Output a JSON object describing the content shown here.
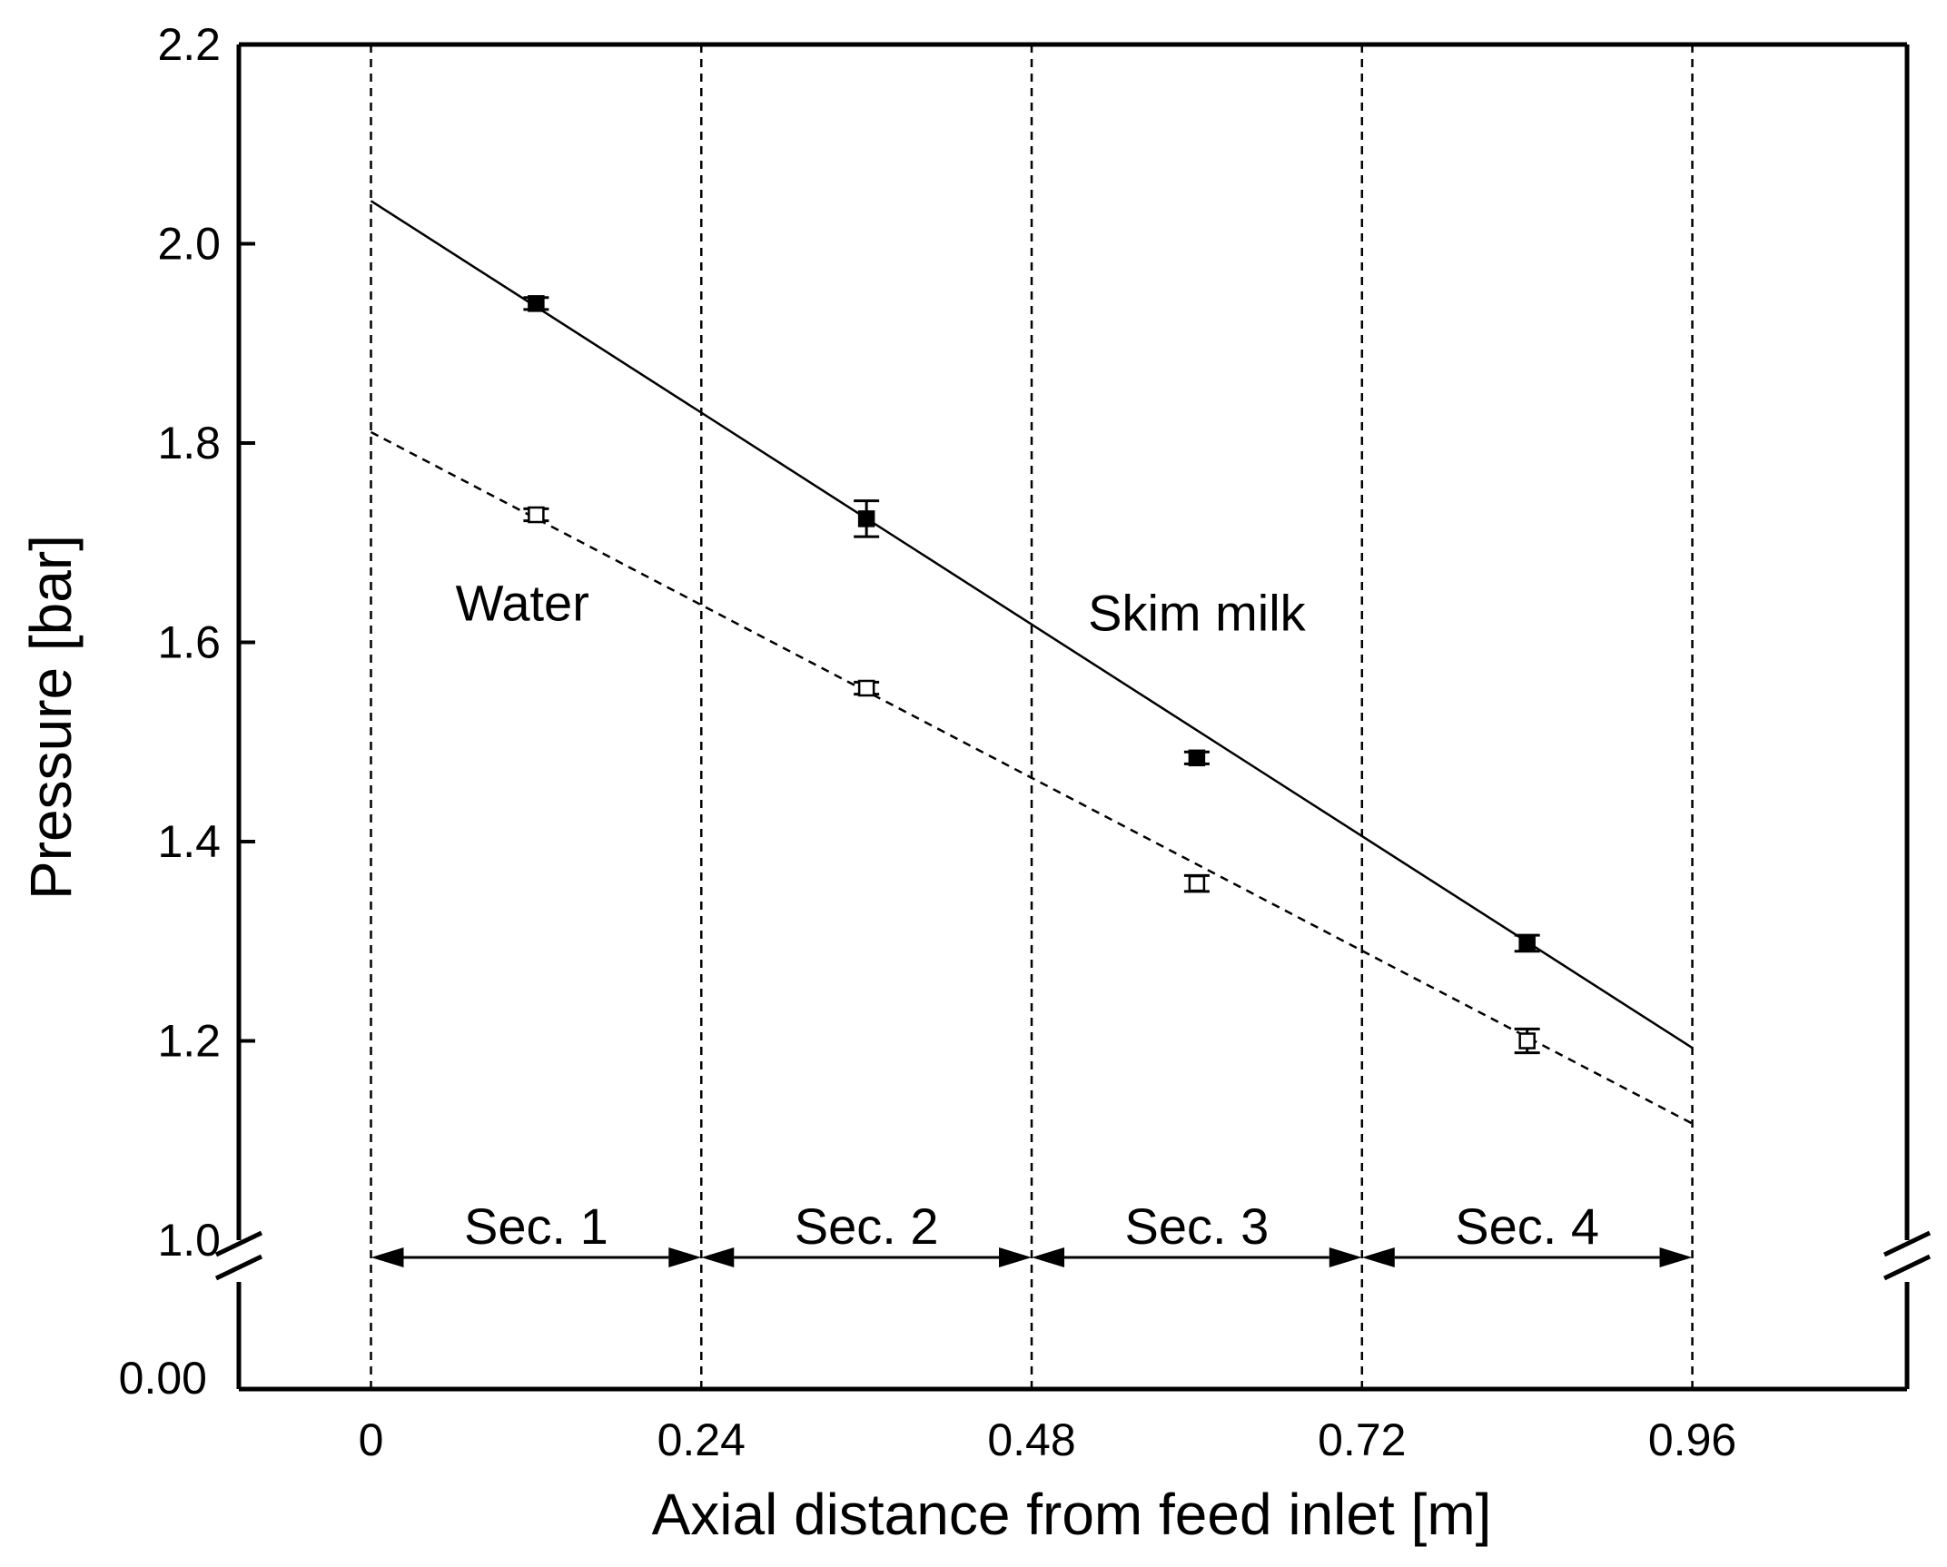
{
  "chart_data": {
    "type": "line",
    "xlabel": "Axial distance from feed inlet [m]",
    "ylabel": "Pressure [bar]",
    "xlim": [
      -0.096,
      1.116
    ],
    "ylim_upper": [
      1.0,
      2.2
    ],
    "ylim_lower": [
      0.0,
      1.0
    ],
    "x_ticks": [
      "0",
      "0.24",
      "0.48",
      "0.72",
      "0.96"
    ],
    "x_tick_values": [
      0,
      0.24,
      0.48,
      0.72,
      0.96
    ],
    "y_ticks_upper": [
      "1.0",
      "1.2",
      "1.4",
      "1.6",
      "1.8",
      "2.0",
      "2.2"
    ],
    "y_tick_values_upper": [
      1.0,
      1.2,
      1.4,
      1.6,
      1.8,
      2.0,
      2.2
    ],
    "y_ticks_lower": [
      "0.00"
    ],
    "y_tick_values_lower": [
      0.0
    ],
    "series": [
      {
        "name": "Skim milk",
        "marker": "filled-square",
        "line_style": "solid",
        "x": [
          0.12,
          0.36,
          0.6,
          0.84
        ],
        "y": [
          1.94,
          1.724,
          1.484,
          1.298
        ],
        "error": [
          0.006,
          0.018,
          0.006,
          0.008
        ],
        "fit": {
          "x": [
            0.0,
            0.96
          ],
          "y": [
            2.043,
            1.193
          ]
        }
      },
      {
        "name": "Water",
        "marker": "open-square",
        "line_style": "dashed",
        "x": [
          0.12,
          0.36,
          0.6,
          0.84
        ],
        "y": [
          1.728,
          1.554,
          1.358,
          1.2
        ],
        "error": [
          0.006,
          0.006,
          0.008,
          0.012
        ],
        "fit": {
          "x": [
            0.0,
            0.96
          ],
          "y": [
            1.811,
            1.117
          ]
        }
      }
    ],
    "annotations": [
      {
        "text": "Water",
        "x": 0.11,
        "y": 1.64
      },
      {
        "text": "Skim milk",
        "x": 0.6,
        "y": 1.63
      }
    ],
    "section_boundaries": [
      0,
      0.24,
      0.48,
      0.72,
      0.96
    ],
    "sections": [
      {
        "label": "Sec. 1",
        "from": 0,
        "to": 0.24
      },
      {
        "label": "Sec. 2",
        "from": 0.24,
        "to": 0.48
      },
      {
        "label": "Sec. 3",
        "from": 0.48,
        "to": 0.72
      },
      {
        "label": "Sec. 4",
        "from": 0.72,
        "to": 0.96
      }
    ],
    "axis_break": "between 0.00 and 1.0 on the y-axis",
    "legend": "none"
  }
}
